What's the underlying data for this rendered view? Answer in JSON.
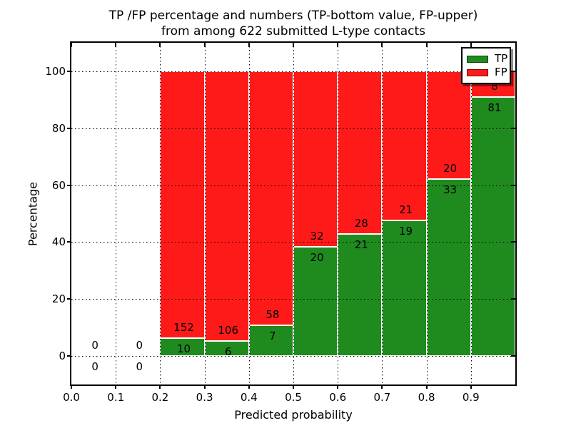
{
  "figure": {
    "title_line1": "TP /FP percentage and numbers (TP-bottom value, FP-upper)",
    "title_line2": "from among 622 submitted L-type contacts",
    "xlabel": "Predicted probability",
    "ylabel": "Percentage"
  },
  "legend": {
    "items": [
      {
        "label": "TP",
        "color": "#1f8b1f"
      },
      {
        "label": "FP",
        "color": "#ff1a1a"
      }
    ]
  },
  "colors": {
    "tp": "#1f8b1f",
    "fp": "#ff1a1a",
    "bar_edge": "#ffffff",
    "frame": "#000000"
  },
  "chart_data": {
    "type": "bar",
    "stacked": true,
    "title": "TP /FP percentage and numbers (TP-bottom value, FP-upper)\nfrom among 622 submitted L-type contacts",
    "xlabel": "Predicted probability",
    "ylabel": "Percentage",
    "xlim": [
      0.0,
      1.0
    ],
    "ylim": [
      -10,
      110
    ],
    "grid": true,
    "legend_position": "upper right",
    "legend_entries": [
      "TP",
      "FP"
    ],
    "xticks": [
      0.0,
      0.1,
      0.2,
      0.3,
      0.4,
      0.5,
      0.6,
      0.7,
      0.8,
      0.9
    ],
    "xtick_labels": [
      "0.0",
      "0.1",
      "0.2",
      "0.3",
      "0.4",
      "0.5",
      "0.6",
      "0.7",
      "0.8",
      "0.9"
    ],
    "yticks": [
      0,
      20,
      40,
      60,
      80,
      100
    ],
    "ytick_labels": [
      "0",
      "20",
      "40",
      "60",
      "80",
      "100"
    ],
    "total_contacts": 622,
    "bins": [
      {
        "x_start": 0.0,
        "x_end": 0.1,
        "tp_count": 0,
        "fp_count": 0,
        "tp_pct": 0,
        "fp_pct": 0
      },
      {
        "x_start": 0.1,
        "x_end": 0.2,
        "tp_count": 0,
        "fp_count": 0,
        "tp_pct": 0,
        "fp_pct": 0
      },
      {
        "x_start": 0.2,
        "x_end": 0.3,
        "tp_count": 10,
        "fp_count": 152,
        "tp_pct": 6.17,
        "fp_pct": 93.83
      },
      {
        "x_start": 0.3,
        "x_end": 0.4,
        "tp_count": 6,
        "fp_count": 106,
        "tp_pct": 5.36,
        "fp_pct": 94.64
      },
      {
        "x_start": 0.4,
        "x_end": 0.5,
        "tp_count": 7,
        "fp_count": 58,
        "tp_pct": 10.77,
        "fp_pct": 89.23
      },
      {
        "x_start": 0.5,
        "x_end": 0.6,
        "tp_count": 20,
        "fp_count": 32,
        "tp_pct": 38.46,
        "fp_pct": 61.54
      },
      {
        "x_start": 0.6,
        "x_end": 0.7,
        "tp_count": 21,
        "fp_count": 28,
        "tp_pct": 42.86,
        "fp_pct": 57.14
      },
      {
        "x_start": 0.7,
        "x_end": 0.8,
        "tp_count": 19,
        "fp_count": 21,
        "tp_pct": 47.5,
        "fp_pct": 52.5
      },
      {
        "x_start": 0.8,
        "x_end": 0.9,
        "tp_count": 33,
        "fp_count": 20,
        "tp_pct": 62.26,
        "fp_pct": 37.74
      },
      {
        "x_start": 0.9,
        "x_end": 1.0,
        "tp_count": 81,
        "fp_count": 8,
        "tp_pct": 91.01,
        "fp_pct": 8.99
      }
    ]
  }
}
